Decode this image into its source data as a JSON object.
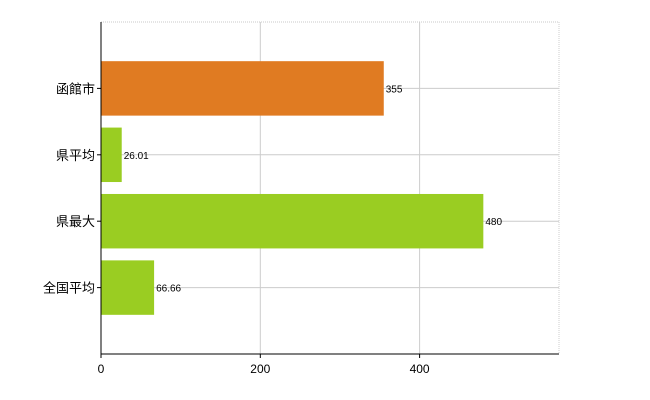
{
  "chart_data": {
    "type": "bar",
    "orientation": "horizontal",
    "categories": [
      "函館市",
      "県平均",
      "県最大",
      "全国平均"
    ],
    "values": [
      355,
      26.01,
      480,
      66.66
    ],
    "value_labels": [
      "355",
      "26.01",
      "480",
      "66.66"
    ],
    "colors": [
      "#e07b22",
      "#9acd22",
      "#9acd22",
      "#9acd22"
    ],
    "xlim": [
      0,
      575
    ],
    "xticks": [
      0,
      200,
      400
    ],
    "xtick_labels": [
      "0",
      "200",
      "400"
    ],
    "grid": true,
    "legend": "none"
  }
}
